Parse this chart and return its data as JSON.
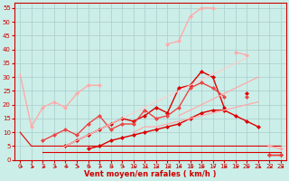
{
  "xlabel": "Vent moyen/en rafales ( km/h )",
  "background_color": "#cceee8",
  "grid_color": "#aacccc",
  "xlim": [
    -0.5,
    23.5
  ],
  "ylim": [
    0,
    57
  ],
  "yticks": [
    0,
    5,
    10,
    15,
    20,
    25,
    30,
    35,
    40,
    45,
    50,
    55
  ],
  "xticks": [
    0,
    1,
    2,
    3,
    4,
    5,
    6,
    7,
    8,
    9,
    10,
    11,
    12,
    13,
    14,
    15,
    16,
    17,
    18,
    19,
    20,
    21,
    22,
    23
  ],
  "series": [
    {
      "x": [
        0,
        1,
        2,
        3,
        4,
        5,
        6,
        7,
        8,
        9,
        10,
        11,
        12,
        13,
        14,
        15,
        16,
        17,
        18,
        19,
        20,
        21,
        22,
        23
      ],
      "y": [
        10,
        5,
        5,
        5,
        5,
        5,
        5,
        5,
        5,
        5,
        5,
        5,
        5,
        5,
        5,
        5,
        5,
        5,
        5,
        5,
        5,
        5,
        5,
        5
      ],
      "color": "#dd0000",
      "linewidth": 0.8,
      "marker": null,
      "markersize": 0
    },
    {
      "x": [
        2,
        3,
        4,
        5,
        6,
        7,
        8,
        9,
        10,
        11,
        12,
        13,
        14,
        15,
        16,
        17,
        18,
        19,
        20,
        21,
        22,
        23
      ],
      "y": [
        3,
        3,
        3,
        3,
        3,
        3,
        3,
        3,
        3,
        3,
        3,
        3,
        3,
        3,
        3,
        3,
        3,
        3,
        3,
        3,
        3,
        3
      ],
      "color": "#dd0000",
      "linewidth": 0.8,
      "marker": null,
      "markersize": 0
    },
    {
      "x": [
        0,
        1,
        2,
        3,
        4,
        5,
        6,
        7,
        8,
        9,
        10,
        11,
        12,
        13,
        14,
        15,
        16,
        17,
        18,
        19,
        20,
        21,
        22,
        23
      ],
      "y": [
        null,
        null,
        null,
        null,
        null,
        null,
        4,
        5,
        7,
        8,
        9,
        10,
        11,
        12,
        13,
        15,
        17,
        18,
        18,
        16,
        14,
        12,
        null,
        null
      ],
      "color": "#dd0000",
      "linewidth": 1.0,
      "marker": "D",
      "markersize": 2.0
    },
    {
      "x": [
        0,
        1,
        2,
        3,
        4,
        5,
        6,
        7,
        8,
        9,
        10,
        11,
        12,
        13,
        14,
        15,
        16,
        17,
        18,
        19,
        20,
        21,
        22,
        23
      ],
      "y": [
        null,
        null,
        null,
        null,
        5,
        7,
        9,
        11,
        13,
        15,
        14,
        16,
        19,
        17,
        26,
        27,
        32,
        30,
        19,
        null,
        24,
        null,
        2,
        2
      ],
      "color": "#dd0000",
      "linewidth": 1.0,
      "marker": "D",
      "markersize": 2.0
    },
    {
      "x": [
        0,
        1,
        2,
        3,
        4,
        5,
        6,
        7,
        8,
        9,
        10,
        11,
        12,
        13,
        14,
        15,
        16,
        17,
        18,
        19,
        20,
        21,
        22,
        23
      ],
      "y": [
        null,
        null,
        7,
        9,
        11,
        9,
        13,
        16,
        11,
        13,
        13,
        18,
        15,
        16,
        19,
        26,
        28,
        26,
        23,
        null,
        23,
        null,
        2,
        2
      ],
      "color": "#ee4444",
      "linewidth": 1.0,
      "marker": "D",
      "markersize": 2.0
    },
    {
      "x": [
        0,
        1,
        2,
        3,
        4,
        5,
        6,
        7,
        8,
        9,
        10,
        11,
        12,
        13,
        14,
        15,
        16,
        17,
        18,
        19,
        20,
        21,
        22,
        23
      ],
      "y": [
        null,
        null,
        null,
        null,
        null,
        null,
        null,
        null,
        null,
        null,
        10,
        12,
        12,
        13,
        14,
        15,
        16,
        17,
        18,
        19,
        20,
        21,
        null,
        null
      ],
      "color": "#ffaaaa",
      "linewidth": 0.9,
      "marker": null,
      "markersize": 0
    },
    {
      "x": [
        0,
        1,
        2,
        3,
        4,
        5,
        6,
        7,
        8,
        9,
        10,
        11,
        12,
        13,
        14,
        15,
        16,
        17,
        18,
        19,
        20,
        21,
        22,
        23
      ],
      "y": [
        null,
        null,
        null,
        null,
        null,
        null,
        null,
        null,
        null,
        null,
        null,
        null,
        null,
        null,
        16,
        18,
        20,
        22,
        24,
        26,
        28,
        30,
        null,
        null
      ],
      "color": "#ffaaaa",
      "linewidth": 0.9,
      "marker": null,
      "markersize": 0
    },
    {
      "x": [
        0,
        1,
        2,
        3,
        4,
        5,
        6,
        7,
        8,
        9,
        10,
        11,
        12,
        13,
        14,
        15,
        16,
        17,
        18,
        19,
        20,
        21,
        22,
        23
      ],
      "y": [
        31,
        12,
        null,
        null,
        null,
        null,
        null,
        null,
        null,
        null,
        null,
        null,
        null,
        null,
        null,
        null,
        null,
        null,
        null,
        null,
        null,
        null,
        null,
        null
      ],
      "color": "#ffaaaa",
      "linewidth": 1.0,
      "marker": null,
      "markersize": 0
    },
    {
      "x": [
        0,
        1,
        2,
        3,
        4,
        5,
        6,
        7,
        8,
        9,
        10,
        11,
        12,
        13,
        14,
        15,
        16,
        17,
        18,
        19,
        20,
        21,
        22,
        23
      ],
      "y": [
        null,
        12,
        19,
        21,
        19,
        24,
        27,
        27,
        null,
        null,
        null,
        null,
        null,
        42,
        43,
        52,
        55,
        55,
        null,
        39,
        38,
        null,
        5,
        4
      ],
      "color": "#ffaaaa",
      "linewidth": 1.0,
      "marker": "D",
      "markersize": 2.0
    },
    {
      "x": [
        0,
        1,
        2,
        3,
        4,
        5,
        6,
        7,
        8,
        9,
        10,
        11,
        12,
        13,
        14,
        15,
        16,
        17,
        18,
        19,
        20,
        21,
        22,
        23
      ],
      "y": [
        null,
        null,
        null,
        3,
        5,
        7,
        9,
        11,
        13,
        15,
        17,
        19,
        21,
        23,
        25,
        27,
        29,
        31,
        33,
        35,
        37,
        null,
        null,
        null
      ],
      "color": "#ffcccc",
      "linewidth": 0.8,
      "marker": null,
      "markersize": 0
    }
  ],
  "arrow_color": "#cc0000",
  "xlabel_color": "#cc0000",
  "xlabel_fontsize": 6,
  "tick_fontsize": 5,
  "tick_color": "#cc0000"
}
